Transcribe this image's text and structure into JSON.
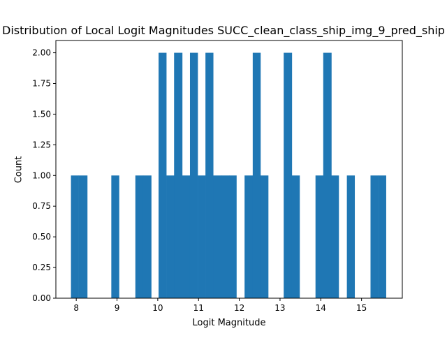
{
  "chart_data": {
    "type": "bar",
    "title": "Distribution of Local Logit Magnitudes SUCC_clean_class_ship_img_9_pred_ship",
    "xlabel": "Logit Magnitude",
    "ylabel": "Count",
    "xlim": [
      7.5,
      16.0
    ],
    "ylim": [
      0,
      2.1
    ],
    "xticks": [
      "8",
      "9",
      "10",
      "11",
      "12",
      "13",
      "14",
      "15"
    ],
    "xtick_values": [
      8,
      9,
      10,
      11,
      12,
      13,
      14,
      15
    ],
    "yticks": [
      "0.00",
      "0.25",
      "0.50",
      "0.75",
      "1.00",
      "1.25",
      "1.50",
      "1.75",
      "2.00"
    ],
    "ytick_values": [
      0,
      0.25,
      0.5,
      0.75,
      1.0,
      1.25,
      1.5,
      1.75,
      2.0
    ],
    "bar_color": "#1f77b4",
    "bins": [
      {
        "x0": 7.87,
        "x1": 8.05,
        "count": 1
      },
      {
        "x0": 8.05,
        "x1": 8.27,
        "count": 1
      },
      {
        "x0": 8.86,
        "x1": 9.05,
        "count": 1
      },
      {
        "x0": 9.45,
        "x1": 9.64,
        "count": 1
      },
      {
        "x0": 9.64,
        "x1": 9.84,
        "count": 1
      },
      {
        "x0": 10.02,
        "x1": 10.21,
        "count": 2
      },
      {
        "x0": 10.21,
        "x1": 10.4,
        "count": 1
      },
      {
        "x0": 10.4,
        "x1": 10.6,
        "count": 2
      },
      {
        "x0": 10.6,
        "x1": 10.79,
        "count": 1
      },
      {
        "x0": 10.79,
        "x1": 10.98,
        "count": 2
      },
      {
        "x0": 10.98,
        "x1": 11.17,
        "count": 1
      },
      {
        "x0": 11.17,
        "x1": 11.36,
        "count": 2
      },
      {
        "x0": 11.36,
        "x1": 11.56,
        "count": 1
      },
      {
        "x0": 11.56,
        "x1": 11.75,
        "count": 1
      },
      {
        "x0": 11.75,
        "x1": 11.93,
        "count": 1
      },
      {
        "x0": 12.13,
        "x1": 12.33,
        "count": 1
      },
      {
        "x0": 12.33,
        "x1": 12.52,
        "count": 2
      },
      {
        "x0": 12.52,
        "x1": 12.71,
        "count": 1
      },
      {
        "x0": 13.09,
        "x1": 13.29,
        "count": 2
      },
      {
        "x0": 13.29,
        "x1": 13.48,
        "count": 1
      },
      {
        "x0": 13.87,
        "x1": 14.06,
        "count": 1
      },
      {
        "x0": 14.06,
        "x1": 14.26,
        "count": 2
      },
      {
        "x0": 14.26,
        "x1": 14.44,
        "count": 1
      },
      {
        "x0": 14.64,
        "x1": 14.83,
        "count": 1
      },
      {
        "x0": 15.22,
        "x1": 15.41,
        "count": 1
      },
      {
        "x0": 15.41,
        "x1": 15.6,
        "count": 1
      }
    ]
  }
}
